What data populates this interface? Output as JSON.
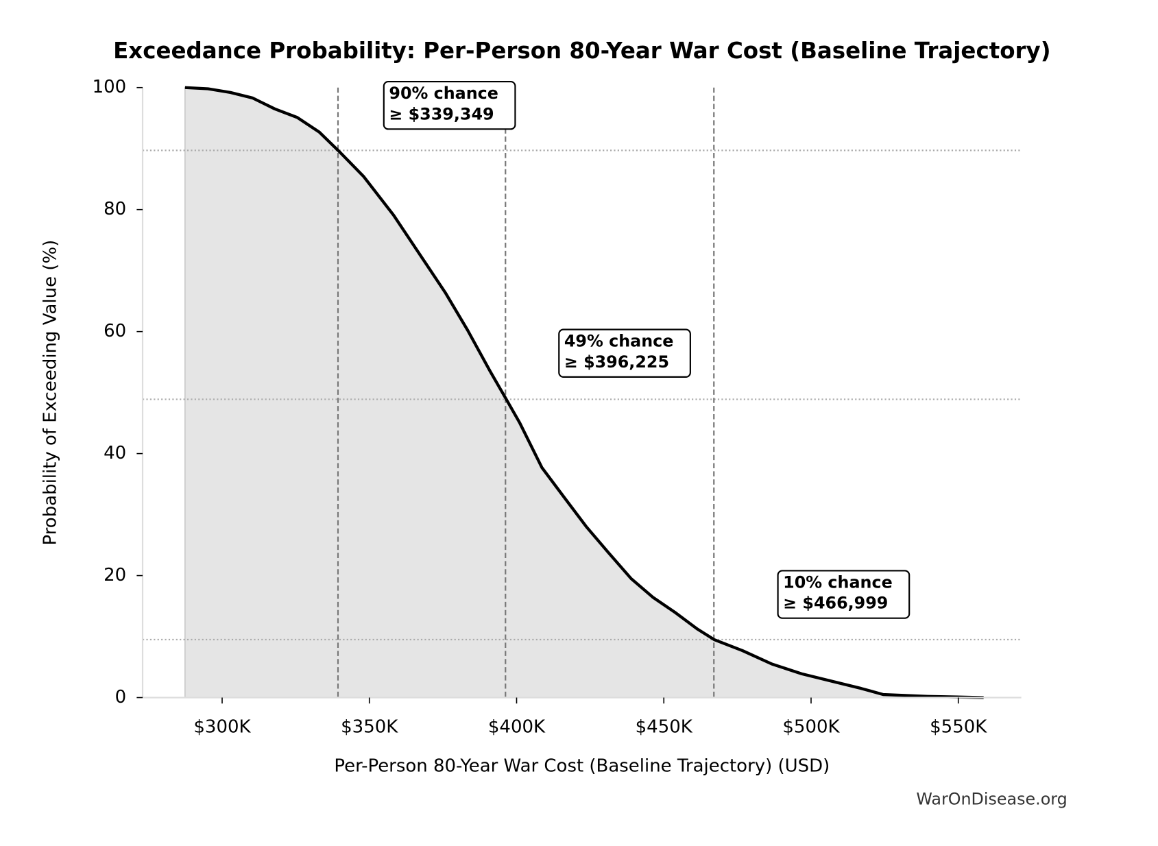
{
  "chart_data": {
    "type": "line",
    "title": "Exceedance Probability: Per-Person 80-Year War Cost (Baseline Trajectory)",
    "x_label": "Per-Person 80-Year War Cost (Baseline Trajectory) (USD)",
    "y_label": "Probability of Exceeding Value (%)",
    "source": "WarOnDisease.org",
    "x": [
      287400,
      295200,
      302800,
      310300,
      317900,
      325500,
      333000,
      339600,
      348100,
      358200,
      368300,
      375900,
      383400,
      391000,
      396500,
      401100,
      408600,
      416200,
      423700,
      431300,
      438900,
      446400,
      454000,
      461500,
      467100,
      476700,
      486700,
      496800,
      506900,
      517000,
      524500,
      539600,
      558600
    ],
    "values": [
      100,
      99.8,
      99.2,
      98.3,
      96.5,
      95.1,
      92.7,
      89.6,
      85.4,
      79.1,
      71.8,
      66.3,
      60.2,
      53.5,
      48.9,
      45,
      37.7,
      32.8,
      28,
      23.7,
      19.5,
      16.4,
      13.9,
      11.2,
      9.5,
      7.7,
      5.5,
      3.9,
      2.7,
      1.5,
      0.5,
      0.2,
      0
    ],
    "color": "#000000",
    "fill_color": "#e5e5e5",
    "xlim": [
      273000,
      571400
    ],
    "ylim": [
      0,
      100
    ],
    "xticks": [
      {
        "value": 300000,
        "label": "$300K"
      },
      {
        "value": 350000,
        "label": "$350K"
      },
      {
        "value": 400000,
        "label": "$400K"
      },
      {
        "value": 450000,
        "label": "$450K"
      },
      {
        "value": 500000,
        "label": "$500K"
      },
      {
        "value": 550000,
        "label": "$550K"
      }
    ],
    "yticks": [
      0,
      20,
      40,
      60,
      80,
      100
    ],
    "annotations": [
      {
        "x": 339349,
        "y": 89.7,
        "lines": [
          "90% chance",
          "≥ $339,349"
        ]
      },
      {
        "x": 396225,
        "y": 48.9,
        "lines": [
          "49% chance",
          "≥ $396,225"
        ]
      },
      {
        "x": 466999,
        "y": 9.5,
        "lines": [
          "10% chance",
          "≥ $466,999"
        ]
      }
    ]
  }
}
